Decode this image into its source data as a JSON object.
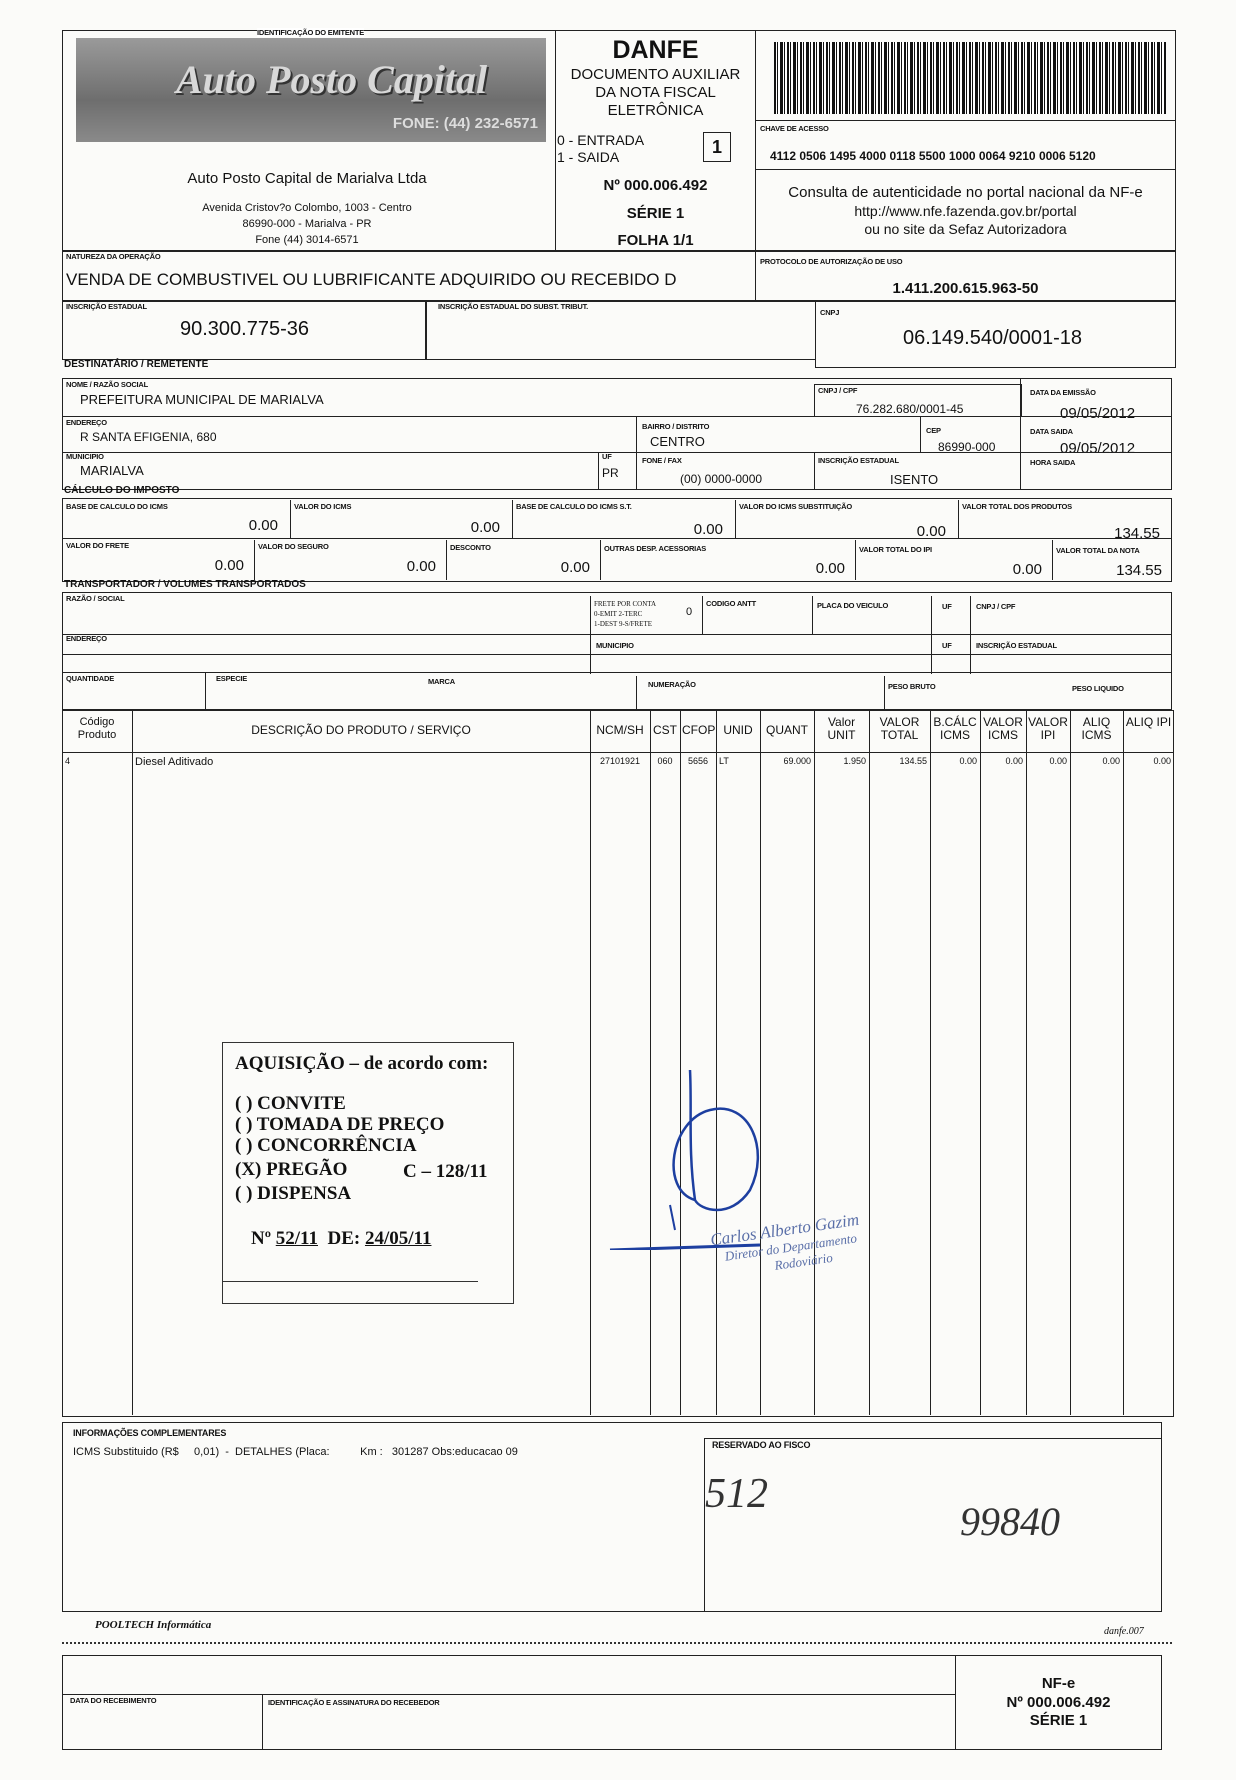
{
  "emitente": {
    "section_label": "IDENTIFICAÇÃO DO EMITENTE",
    "logo_text": "Auto Posto Capital",
    "logo_phone": "FONE: (44) 232-6571",
    "name": "Auto Posto Capital de Marialva Ltda",
    "address": "Avenida Cristov?o Colombo, 1003 - Centro",
    "city": "86990-000 - Marialva - PR",
    "phone": "Fone (44) 3014-6571"
  },
  "danfe": {
    "title": "DANFE",
    "subtitle_1": "DOCUMENTO AUXILIAR",
    "subtitle_2": "DA NOTA FISCAL",
    "subtitle_3": "ELETRÔNICA",
    "entrada": "0 - ENTRADA",
    "saida": "1 - SAIDA",
    "tipo": "1",
    "numero": "Nº 000.006.492",
    "serie": "SÉRIE 1",
    "folha": "FOLHA 1/1"
  },
  "chave": {
    "label": "CHAVE DE ACESSO",
    "value": "4112 0506 1495 4000 0118 5500 1000 0064 9210 0006 5120"
  },
  "consulta": {
    "line1": "Consulta de autenticidade no portal nacional da NF-e",
    "line2": "http://www.nfe.fazenda.gov.br/portal",
    "line3": "ou no site da Sefaz Autorizadora"
  },
  "natureza": {
    "label": "NATUREZA DA OPERAÇÃO",
    "value": "VENDA DE COMBUSTIVEL OU LUBRIFICANTE ADQUIRIDO OU RECEBIDO D"
  },
  "protocolo": {
    "label": "PROTOCOLO DE AUTORIZAÇÃO DE USO",
    "value": "1.411.200.615.963-50"
  },
  "inscricao": {
    "label": "INSCRIÇÃO ESTADUAL",
    "value": "90.300.775-36"
  },
  "inscricao_subst": {
    "label": "INSCRIÇÃO ESTADUAL DO SUBST. TRIBUT.",
    "value": ""
  },
  "cnpj": {
    "label": "CNPJ",
    "value": "06.149.540/0001-18"
  },
  "destinatario": {
    "section_label": "DESTINATÁRIO / REMETENTE",
    "nome_label": "NOME / RAZÃO SOCIAL",
    "nome": "PREFEITURA MUNICIPAL DE MARIALVA",
    "cnpj_label": "CNPJ / CPF",
    "cnpj": "76.282.680/0001-45",
    "data_emissao_label": "DATA DA EMISSÃO",
    "data_emissao": "09/05/2012",
    "endereco_label": "ENDEREÇO",
    "endereco": "R SANTA EFIGENIA, 680",
    "bairro_label": "BAIRRO / DISTRITO",
    "bairro": "CENTRO",
    "cep_label": "CEP",
    "cep": "86990-000",
    "data_saida_label": "DATA SAIDA",
    "data_saida": "09/05/2012",
    "municipio_label": "MUNICIPIO",
    "municipio": "MARIALVA",
    "uf_label": "UF",
    "uf": "PR",
    "fone_label": "FONE / FAX",
    "fone": "(00) 0000-0000",
    "ie_label": "INSCRIÇÃO ESTADUAL",
    "ie": "ISENTO",
    "hora_saida_label": "HORA SAIDA"
  },
  "calculo": {
    "section_label": "CÁLCULO DO IMPOSTO",
    "row1": [
      {
        "label": "BASE DE CALCULO DO ICMS",
        "value": "0.00"
      },
      {
        "label": "VALOR DO ICMS",
        "value": "0.00"
      },
      {
        "label": "BASE DE CALCULO DO ICMS S.T.",
        "value": "0.00"
      },
      {
        "label": "VALOR DO ICMS SUBSTITUIÇÃO",
        "value": "0.00"
      },
      {
        "label": "VALOR TOTAL DOS PRODUTOS",
        "value": "134.55"
      }
    ],
    "row2": [
      {
        "label": "VALOR DO FRETE",
        "value": "0.00"
      },
      {
        "label": "VALOR DO SEGURO",
        "value": "0.00"
      },
      {
        "label": "DESCONTO",
        "value": "0.00"
      },
      {
        "label": "OUTRAS DESP. ACESSORIAS",
        "value": "0.00"
      },
      {
        "label": "VALOR TOTAL DO IPI",
        "value": "0.00"
      },
      {
        "label": "VALOR TOTAL DA NOTA",
        "value": "134.55"
      }
    ]
  },
  "transportador": {
    "section_label": "TRANSPORTADOR / VOLUMES TRANSPORTADOS",
    "razao_label": "RAZÃO / SOCIAL",
    "frete_label_1": "FRETE POR CONTA",
    "frete_label_2": "0-EMIT 2-TERC",
    "frete_label_3": "1-DEST 9-S/FRETE",
    "frete_value": "0",
    "antt_label": "CODIGO ANTT",
    "placa_label": "PLACA DO VEICULO",
    "uf_label": "UF",
    "cnpj_label": "CNPJ / CPF",
    "endereco_label": "ENDEREÇO",
    "municipio_label": "MUNICIPIO",
    "uf2_label": "UF",
    "ie_label": "INSCRIÇÃO ESTADUAL",
    "quantidade_label": "QUANTIDADE",
    "especie_label": "ESPECIE",
    "marca_label": "MARCA",
    "numeracao_label": "NUMERAÇÃO",
    "peso_bruto_label": "PESO BRUTO",
    "peso_liquido_label": "PESO LIQUIDO"
  },
  "produtos": {
    "headers": [
      "Código Produto",
      "DESCRIÇÃO DO PRODUTO / SERVIÇO",
      "NCM/SH",
      "CST",
      "CFOP",
      "UNID",
      "QUANT",
      "Valor UNIT",
      "VALOR TOTAL",
      "B.CÁLC ICMS",
      "VALOR ICMS",
      "VALOR IPI",
      "ALIQ ICMS",
      "ALIQ IPI"
    ],
    "rows": [
      [
        "4",
        "Diesel Aditivado",
        "27101921",
        "060",
        "5656",
        "LT",
        "69.000",
        "1.950",
        "134.55",
        "0.00",
        "0.00",
        "0.00",
        "0.00",
        "0.00"
      ]
    ]
  },
  "stamp": {
    "title": "AQUISIÇÃO – de acordo com:",
    "items": [
      "( ) CONVITE",
      "( ) TOMADA DE PREÇO",
      "( ) CONCORRÊNCIA",
      "(X) PREGÃO",
      "( ) DISPENSA"
    ],
    "pregao_ref": "C – 128/11",
    "numero_label": "Nº",
    "numero": "52/11",
    "data_label": "DE:",
    "data": "24/05/11"
  },
  "signature_stamp": {
    "line1": "Carlos Alberto Gazim",
    "line2": "Diretor do Departamento",
    "line3": "Rodoviário"
  },
  "info": {
    "label": "INFORMAÇÕES COMPLEMENTARES",
    "text": "ICMS Substituido (R$     0,01)  -  DETALHES (Placa:          Km :   301287 Obs:educacao 09",
    "fisco_label": "RESERVADO AO FISCO",
    "handwritten_1": "512",
    "handwritten_2": "99840"
  },
  "footer": {
    "software": "POOLTECH Informática",
    "form_code": "danfe.007"
  },
  "canhoto": {
    "data_label": "DATA DO RECEBIMENTO",
    "assinatura_label": "IDENTIFICAÇÃO E ASSINATURA DO RECEBEDOR",
    "nfe": "NF-e",
    "numero": "Nº 000.006.492",
    "serie": "SÉRIE 1"
  }
}
